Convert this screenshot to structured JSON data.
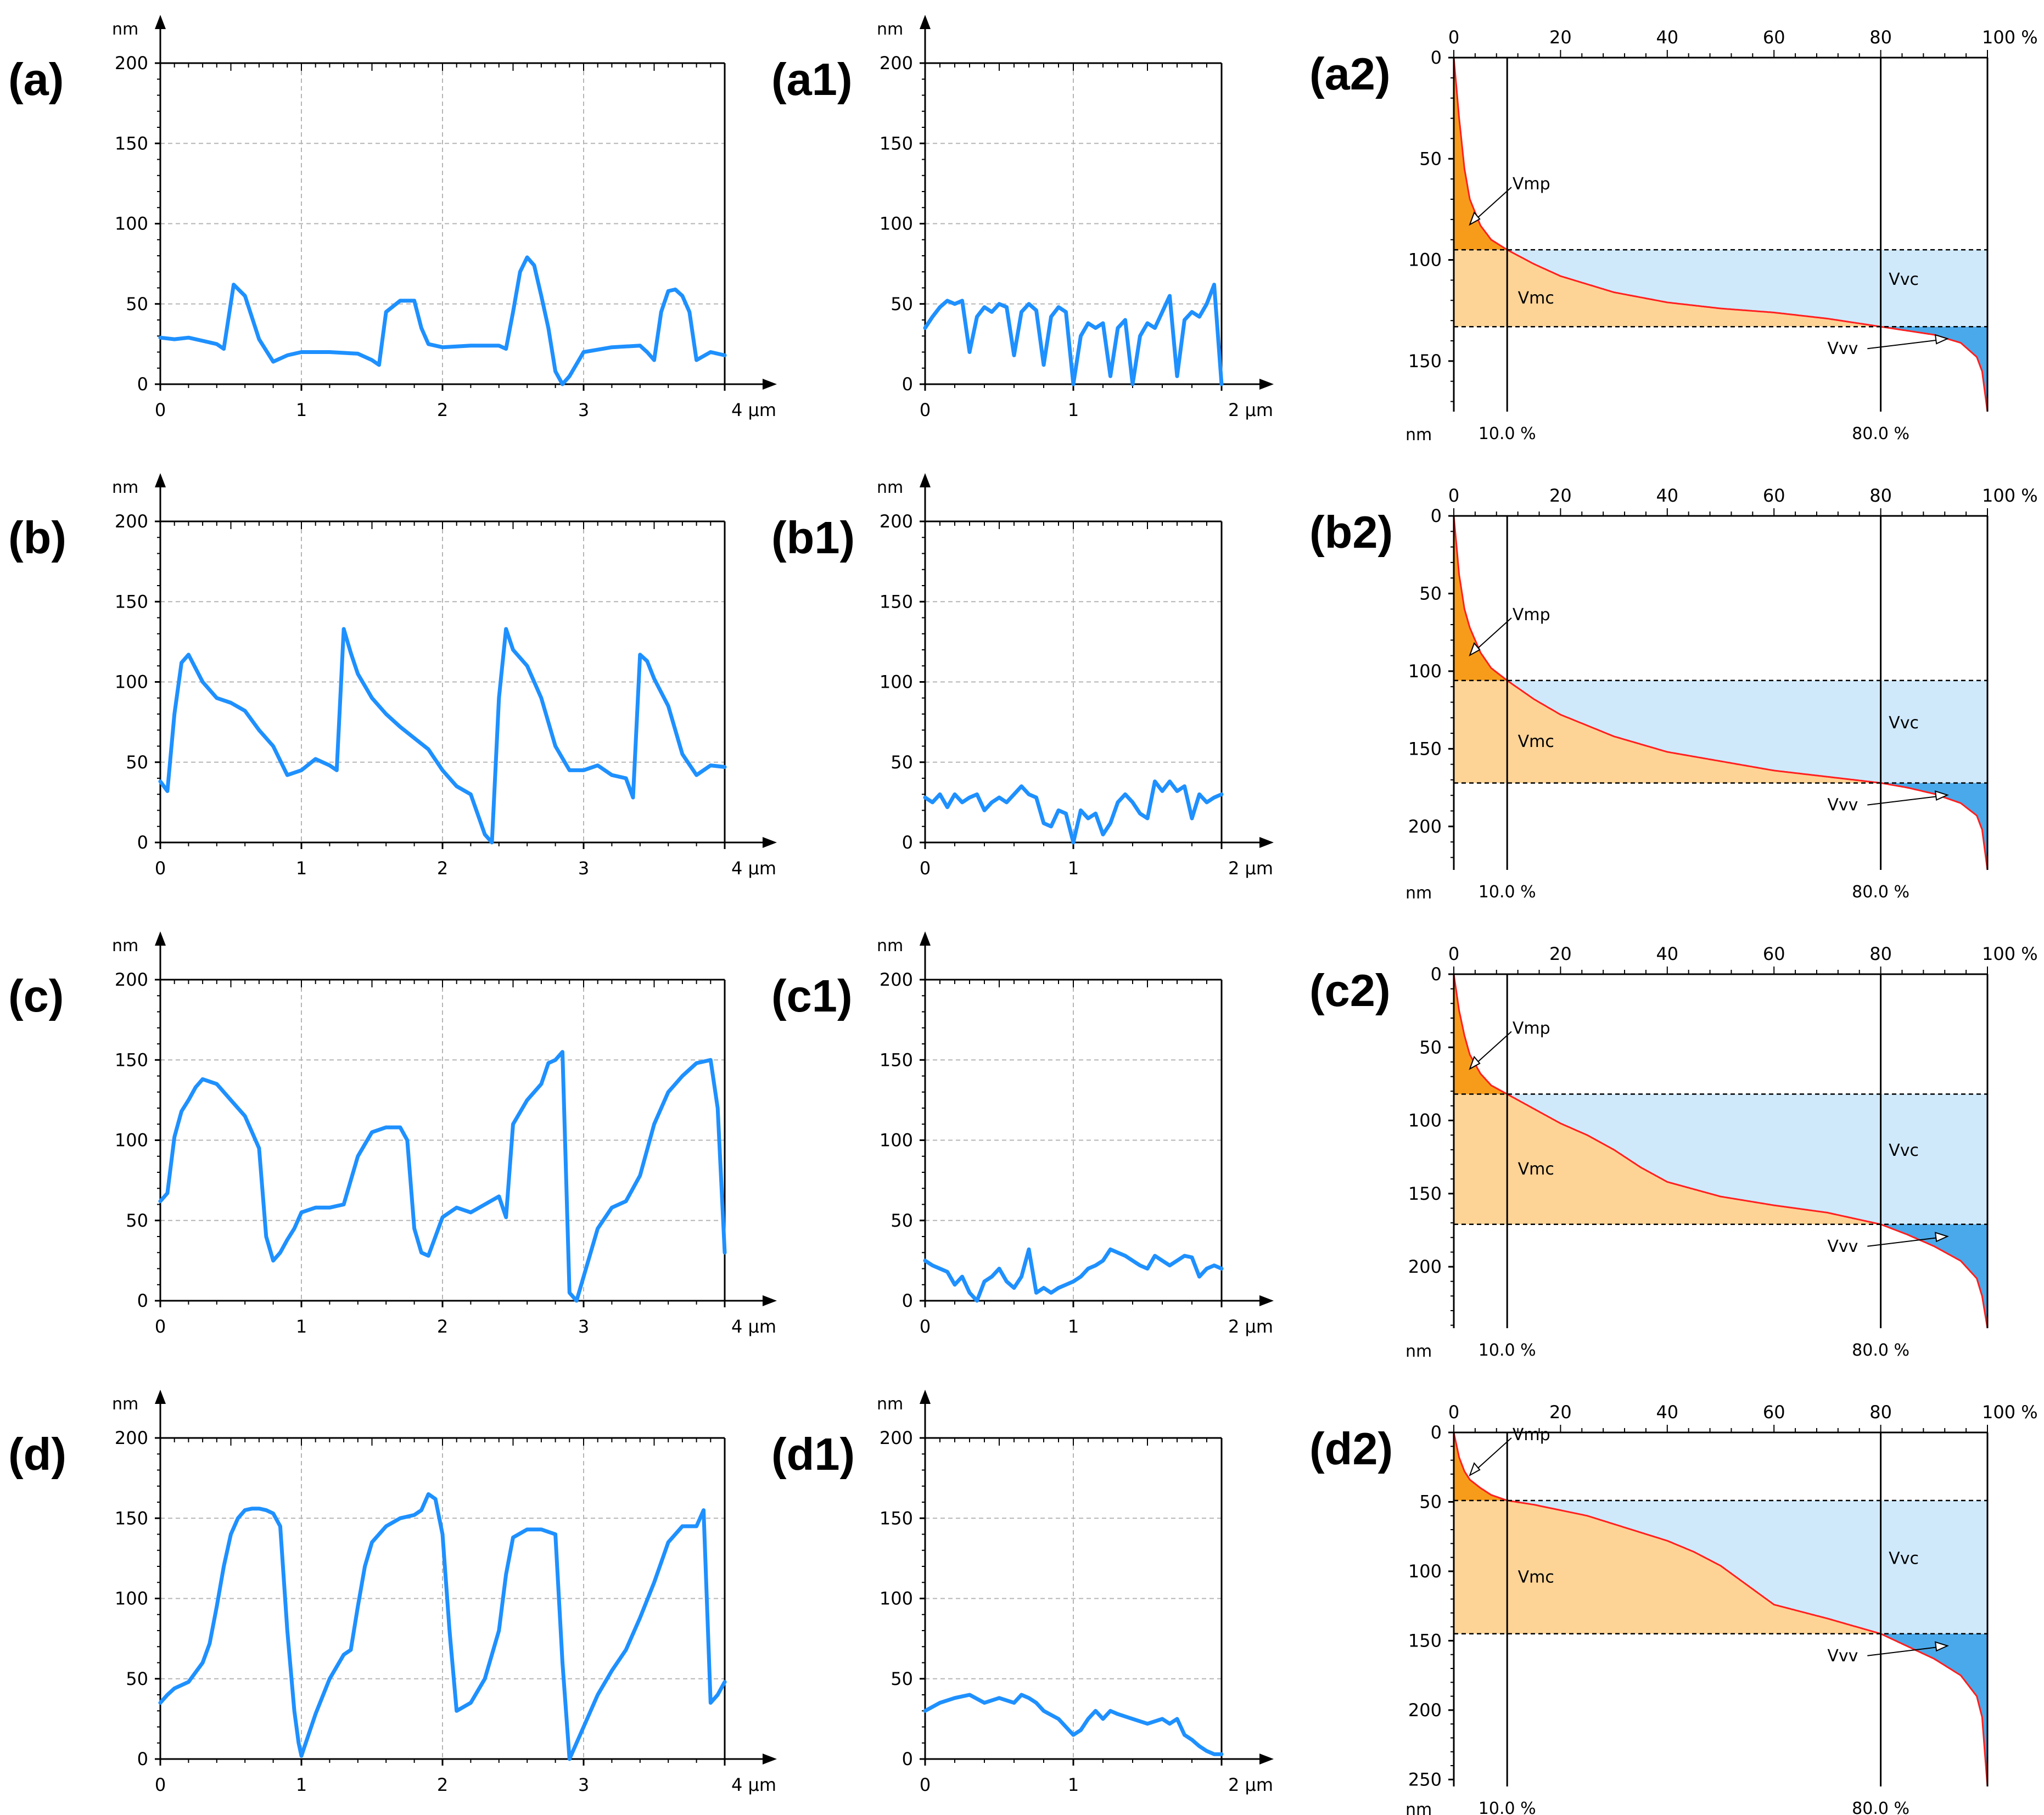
{
  "figure_title": "",
  "chart_data": [
    {
      "id": "a",
      "label": "(a)",
      "type": "line",
      "xunit": "µm",
      "yunit": "nm",
      "xlim": [
        0,
        4
      ],
      "ylim": [
        0,
        200
      ],
      "xticks": [
        "0",
        "1",
        "2",
        "3",
        "4 µm"
      ],
      "yticks": [
        "0",
        "50",
        "100",
        "150",
        "200"
      ],
      "color": "#1e90ff",
      "x": [
        0,
        0.1,
        0.2,
        0.3,
        0.4,
        0.45,
        0.52,
        0.6,
        0.7,
        0.8,
        0.9,
        1.0,
        1.2,
        1.4,
        1.5,
        1.55,
        1.6,
        1.7,
        1.8,
        1.85,
        1.9,
        2.0,
        2.2,
        2.4,
        2.45,
        2.5,
        2.55,
        2.6,
        2.65,
        2.7,
        2.75,
        2.8,
        2.85,
        2.9,
        3.0,
        3.2,
        3.4,
        3.45,
        3.5,
        3.55,
        3.6,
        3.65,
        3.7,
        3.75,
        3.8,
        3.9,
        4.0
      ],
      "y": [
        29,
        28,
        29,
        27,
        25,
        22,
        62,
        55,
        28,
        14,
        18,
        20,
        20,
        19,
        15,
        12,
        45,
        52,
        52,
        35,
        25,
        23,
        24,
        24,
        22,
        45,
        70,
        79,
        74,
        55,
        35,
        8,
        0,
        5,
        20,
        23,
        24,
        20,
        15,
        45,
        58,
        59,
        55,
        45,
        15,
        20,
        18
      ]
    },
    {
      "id": "a1",
      "label": "(a1)",
      "type": "line",
      "xunit": "µm",
      "yunit": "nm",
      "xlim": [
        0,
        2
      ],
      "ylim": [
        0,
        200
      ],
      "xticks": [
        "0",
        "1",
        "2 µm"
      ],
      "yticks": [
        "0",
        "50",
        "100",
        "150",
        "200"
      ],
      "color": "#1e90ff",
      "x": [
        0,
        0.05,
        0.1,
        0.15,
        0.2,
        0.25,
        0.3,
        0.35,
        0.4,
        0.45,
        0.5,
        0.55,
        0.6,
        0.65,
        0.7,
        0.75,
        0.8,
        0.85,
        0.9,
        0.95,
        1.0,
        1.05,
        1.1,
        1.15,
        1.2,
        1.25,
        1.3,
        1.35,
        1.4,
        1.45,
        1.5,
        1.55,
        1.6,
        1.65,
        1.7,
        1.75,
        1.8,
        1.85,
        1.9,
        1.95,
        2.0
      ],
      "y": [
        35,
        42,
        48,
        52,
        50,
        52,
        20,
        42,
        48,
        45,
        50,
        48,
        18,
        45,
        50,
        46,
        12,
        42,
        48,
        45,
        0,
        30,
        38,
        35,
        38,
        5,
        35,
        40,
        0,
        30,
        38,
        35,
        45,
        55,
        5,
        40,
        45,
        42,
        50,
        62,
        0
      ]
    },
    {
      "id": "a2",
      "label": "(a2)",
      "type": "abbott",
      "yunit": "nm",
      "xunit": "%",
      "ylim": [
        0,
        175
      ],
      "yticks": [
        "0",
        "50",
        "100",
        "150"
      ],
      "xticks": [
        "0",
        "20",
        "40",
        "60",
        "80",
        "100 %"
      ],
      "markers": [
        "10.0 %",
        "80.0 %"
      ],
      "depth_at_10": 95,
      "depth_at_80": 133,
      "labels": [
        "Vmp",
        "Vmc",
        "Vvc",
        "Vvv"
      ],
      "x": [
        0,
        1,
        2,
        3,
        5,
        7,
        10,
        15,
        20,
        30,
        40,
        50,
        60,
        70,
        80,
        85,
        90,
        95,
        98,
        99,
        100
      ],
      "y": [
        0,
        30,
        55,
        70,
        83,
        90,
        95,
        102,
        108,
        116,
        121,
        124,
        126,
        129,
        133,
        135,
        137,
        141,
        148,
        155,
        175
      ]
    },
    {
      "id": "b",
      "label": "(b)",
      "type": "line",
      "xunit": "µm",
      "yunit": "nm",
      "xlim": [
        0,
        4
      ],
      "ylim": [
        0,
        200
      ],
      "xticks": [
        "0",
        "1",
        "2",
        "3",
        "4 µm"
      ],
      "yticks": [
        "0",
        "50",
        "100",
        "150",
        "200"
      ],
      "color": "#1e90ff",
      "x": [
        0,
        0.05,
        0.1,
        0.15,
        0.2,
        0.3,
        0.4,
        0.5,
        0.6,
        0.7,
        0.8,
        0.9,
        1.0,
        1.1,
        1.2,
        1.25,
        1.3,
        1.35,
        1.4,
        1.5,
        1.6,
        1.7,
        1.8,
        1.9,
        2.0,
        2.1,
        2.2,
        2.3,
        2.35,
        2.4,
        2.45,
        2.5,
        2.6,
        2.7,
        2.8,
        2.9,
        3.0,
        3.1,
        3.2,
        3.3,
        3.35,
        3.4,
        3.45,
        3.5,
        3.6,
        3.7,
        3.8,
        3.9,
        4.0
      ],
      "y": [
        38,
        32,
        80,
        112,
        117,
        100,
        90,
        87,
        82,
        70,
        60,
        42,
        45,
        52,
        48,
        45,
        133,
        118,
        105,
        90,
        80,
        72,
        65,
        58,
        45,
        35,
        30,
        5,
        0,
        90,
        133,
        120,
        110,
        90,
        60,
        45,
        45,
        48,
        42,
        40,
        28,
        117,
        113,
        102,
        85,
        55,
        42,
        48,
        47
      ]
    },
    {
      "id": "b1",
      "label": "(b1)",
      "type": "line",
      "xunit": "µm",
      "yunit": "nm",
      "xlim": [
        0,
        2
      ],
      "ylim": [
        0,
        200
      ],
      "xticks": [
        "0",
        "1",
        "2 µm"
      ],
      "yticks": [
        "0",
        "50",
        "100",
        "150",
        "200"
      ],
      "color": "#1e90ff",
      "x": [
        0,
        0.05,
        0.1,
        0.15,
        0.2,
        0.25,
        0.3,
        0.35,
        0.4,
        0.45,
        0.5,
        0.55,
        0.6,
        0.65,
        0.7,
        0.75,
        0.8,
        0.85,
        0.9,
        0.95,
        1.0,
        1.05,
        1.1,
        1.15,
        1.2,
        1.25,
        1.3,
        1.35,
        1.4,
        1.45,
        1.5,
        1.55,
        1.6,
        1.65,
        1.7,
        1.75,
        1.8,
        1.85,
        1.9,
        1.95,
        2.0
      ],
      "y": [
        28,
        25,
        30,
        22,
        30,
        25,
        28,
        30,
        20,
        25,
        28,
        25,
        30,
        35,
        30,
        28,
        12,
        10,
        20,
        18,
        0,
        20,
        15,
        18,
        5,
        12,
        25,
        30,
        25,
        18,
        15,
        38,
        32,
        38,
        32,
        35,
        15,
        30,
        25,
        28,
        30
      ]
    },
    {
      "id": "b2",
      "label": "(b2)",
      "type": "abbott",
      "yunit": "nm",
      "xunit": "%",
      "ylim": [
        0,
        228
      ],
      "yticks": [
        "0",
        "50",
        "100",
        "150",
        "200"
      ],
      "xticks": [
        "0",
        "20",
        "40",
        "60",
        "80",
        "100 %"
      ],
      "markers": [
        "10.0 %",
        "80.0 %"
      ],
      "depth_at_10": 106,
      "depth_at_80": 172,
      "labels": [
        "Vmp",
        "Vmc",
        "Vvc",
        "Vvv"
      ],
      "x": [
        0,
        1,
        2,
        3,
        5,
        7,
        10,
        15,
        20,
        30,
        40,
        50,
        60,
        70,
        80,
        85,
        90,
        95,
        98,
        99,
        100
      ],
      "y": [
        0,
        38,
        60,
        72,
        88,
        98,
        106,
        118,
        128,
        142,
        152,
        158,
        164,
        168,
        172,
        175,
        179,
        185,
        193,
        202,
        228
      ]
    },
    {
      "id": "c",
      "label": "(c)",
      "type": "line",
      "xunit": "µm",
      "yunit": "nm",
      "xlim": [
        0,
        4
      ],
      "ylim": [
        0,
        200
      ],
      "xticks": [
        "0",
        "1",
        "2",
        "3",
        "4 µm"
      ],
      "yticks": [
        "0",
        "50",
        "100",
        "150",
        "200"
      ],
      "color": "#1e90ff",
      "x": [
        0,
        0.05,
        0.1,
        0.15,
        0.2,
        0.25,
        0.3,
        0.4,
        0.5,
        0.6,
        0.7,
        0.75,
        0.8,
        0.85,
        0.9,
        0.95,
        1.0,
        1.1,
        1.2,
        1.3,
        1.4,
        1.5,
        1.6,
        1.7,
        1.75,
        1.8,
        1.85,
        1.9,
        2.0,
        2.1,
        2.2,
        2.3,
        2.4,
        2.45,
        2.5,
        2.6,
        2.7,
        2.75,
        2.8,
        2.85,
        2.9,
        2.95,
        3.0,
        3.1,
        3.2,
        3.3,
        3.4,
        3.5,
        3.6,
        3.7,
        3.8,
        3.9,
        3.95,
        4.0
      ],
      "y": [
        62,
        67,
        102,
        118,
        125,
        133,
        138,
        135,
        125,
        115,
        95,
        40,
        25,
        30,
        38,
        45,
        55,
        58,
        58,
        60,
        90,
        105,
        108,
        108,
        100,
        45,
        30,
        28,
        52,
        58,
        55,
        60,
        65,
        52,
        110,
        125,
        135,
        148,
        150,
        155,
        5,
        0,
        15,
        45,
        58,
        62,
        78,
        110,
        130,
        140,
        148,
        150,
        120,
        30
      ]
    },
    {
      "id": "c1",
      "label": "(c1)",
      "type": "line",
      "xunit": "µm",
      "yunit": "nm",
      "xlim": [
        0,
        2
      ],
      "ylim": [
        0,
        200
      ],
      "xticks": [
        "0",
        "1",
        "2 µm"
      ],
      "yticks": [
        "0",
        "50",
        "100",
        "150",
        "200"
      ],
      "color": "#1e90ff",
      "x": [
        0,
        0.05,
        0.1,
        0.15,
        0.2,
        0.25,
        0.3,
        0.35,
        0.4,
        0.45,
        0.5,
        0.55,
        0.6,
        0.65,
        0.7,
        0.75,
        0.8,
        0.85,
        0.9,
        0.95,
        1.0,
        1.05,
        1.1,
        1.15,
        1.2,
        1.25,
        1.3,
        1.35,
        1.4,
        1.45,
        1.5,
        1.55,
        1.6,
        1.65,
        1.7,
        1.75,
        1.8,
        1.85,
        1.9,
        1.95,
        2.0
      ],
      "y": [
        25,
        22,
        20,
        18,
        10,
        15,
        5,
        0,
        12,
        15,
        20,
        12,
        8,
        15,
        32,
        5,
        8,
        5,
        8,
        10,
        12,
        15,
        20,
        22,
        25,
        32,
        30,
        28,
        25,
        22,
        20,
        28,
        25,
        22,
        25,
        28,
        27,
        15,
        20,
        22,
        20
      ]
    },
    {
      "id": "c2",
      "label": "(c2)",
      "type": "abbott",
      "yunit": "nm",
      "xunit": "%",
      "ylim": [
        0,
        242
      ],
      "yticks": [
        "0",
        "50",
        "100",
        "150",
        "200"
      ],
      "xticks": [
        "0",
        "20",
        "40",
        "60",
        "80",
        "100 %"
      ],
      "markers": [
        "10.0 %",
        "80.0 %"
      ],
      "depth_at_10": 82,
      "depth_at_80": 171,
      "labels": [
        "Vmp",
        "Vmc",
        "Vvc",
        "Vvv"
      ],
      "x": [
        0,
        1,
        2,
        3,
        5,
        7,
        10,
        15,
        20,
        25,
        30,
        35,
        40,
        50,
        60,
        70,
        80,
        85,
        90,
        95,
        98,
        99,
        100
      ],
      "y": [
        0,
        25,
        42,
        55,
        68,
        76,
        82,
        92,
        102,
        110,
        120,
        132,
        142,
        152,
        158,
        163,
        171,
        178,
        186,
        196,
        208,
        220,
        242
      ]
    },
    {
      "id": "d",
      "label": "(d)",
      "type": "line",
      "xunit": "µm",
      "yunit": "nm",
      "xlim": [
        0,
        4
      ],
      "ylim": [
        0,
        200
      ],
      "xticks": [
        "0",
        "1",
        "2",
        "3",
        "4 µm"
      ],
      "yticks": [
        "0",
        "50",
        "100",
        "150",
        "200"
      ],
      "color": "#1e90ff",
      "x": [
        0,
        0.05,
        0.1,
        0.2,
        0.3,
        0.35,
        0.4,
        0.45,
        0.5,
        0.55,
        0.6,
        0.65,
        0.7,
        0.75,
        0.8,
        0.85,
        0.9,
        0.95,
        0.98,
        1.0,
        1.1,
        1.2,
        1.3,
        1.35,
        1.4,
        1.45,
        1.5,
        1.6,
        1.7,
        1.8,
        1.85,
        1.9,
        1.95,
        2.0,
        2.05,
        2.1,
        2.2,
        2.3,
        2.4,
        2.45,
        2.5,
        2.6,
        2.7,
        2.8,
        2.85,
        2.9,
        3.0,
        3.1,
        3.2,
        3.3,
        3.4,
        3.5,
        3.6,
        3.7,
        3.8,
        3.85,
        3.9,
        3.95,
        4.0
      ],
      "y": [
        35,
        40,
        44,
        48,
        60,
        72,
        95,
        120,
        140,
        150,
        155,
        156,
        156,
        155,
        153,
        145,
        80,
        30,
        10,
        2,
        28,
        50,
        65,
        68,
        95,
        120,
        135,
        145,
        150,
        152,
        155,
        165,
        162,
        140,
        80,
        30,
        35,
        50,
        80,
        115,
        138,
        143,
        143,
        140,
        60,
        0,
        20,
        40,
        55,
        68,
        88,
        110,
        135,
        145,
        145,
        155,
        35,
        40,
        48
      ]
    },
    {
      "id": "d1",
      "label": "(d1)",
      "type": "line",
      "xunit": "µm",
      "yunit": "nm",
      "xlim": [
        0,
        2
      ],
      "ylim": [
        0,
        200
      ],
      "xticks": [
        "0",
        "1",
        "2 µm"
      ],
      "yticks": [
        "0",
        "50",
        "100",
        "150",
        "200"
      ],
      "color": "#1e90ff",
      "x": [
        0,
        0.1,
        0.2,
        0.3,
        0.4,
        0.5,
        0.6,
        0.65,
        0.7,
        0.75,
        0.8,
        0.9,
        0.95,
        1.0,
        1.05,
        1.1,
        1.15,
        1.2,
        1.25,
        1.3,
        1.4,
        1.5,
        1.6,
        1.65,
        1.7,
        1.75,
        1.8,
        1.85,
        1.9,
        1.95,
        2.0
      ],
      "y": [
        30,
        35,
        38,
        40,
        35,
        38,
        35,
        40,
        38,
        35,
        30,
        25,
        20,
        15,
        18,
        25,
        30,
        25,
        30,
        28,
        25,
        22,
        25,
        22,
        25,
        15,
        12,
        8,
        5,
        3,
        3
      ]
    },
    {
      "id": "d2",
      "label": "(d2)",
      "type": "abbott",
      "yunit": "nm",
      "xunit": "%",
      "ylim": [
        0,
        255
      ],
      "yticks": [
        "0",
        "50",
        "100",
        "150",
        "200",
        "250"
      ],
      "xticks": [
        "0",
        "20",
        "40",
        "60",
        "80",
        "100 %"
      ],
      "markers": [
        "10.0 %",
        "80.0 %"
      ],
      "depth_at_10": 49,
      "depth_at_80": 145,
      "labels": [
        "Vmp",
        "Vmc",
        "Vvc",
        "Vvv"
      ],
      "x": [
        0,
        1,
        2,
        3,
        5,
        7,
        10,
        15,
        20,
        25,
        30,
        35,
        40,
        45,
        50,
        55,
        60,
        70,
        80,
        85,
        90,
        95,
        98,
        99,
        100
      ],
      "y": [
        0,
        18,
        28,
        34,
        40,
        45,
        49,
        52,
        56,
        60,
        66,
        72,
        78,
        86,
        96,
        110,
        124,
        134,
        145,
        154,
        163,
        175,
        190,
        205,
        255
      ]
    }
  ]
}
